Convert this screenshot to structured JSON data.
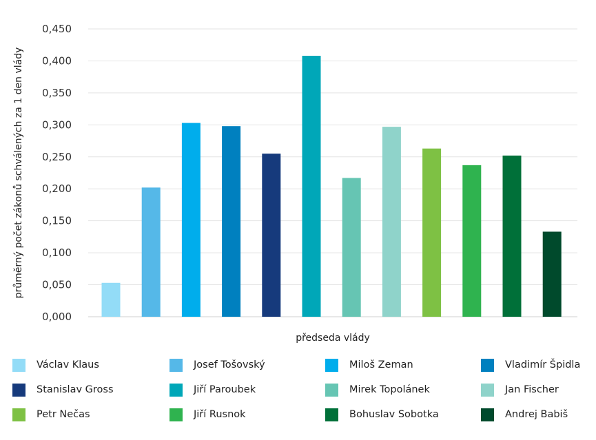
{
  "chart_data": {
    "type": "bar",
    "title": "",
    "xlabel": "předseda vlády",
    "ylabel": "průměrný počet zákonů schválených za 1 den vlády",
    "ylim": [
      0,
      0.45
    ],
    "yticks": [
      "0,000",
      "0,050",
      "0,100",
      "0,150",
      "0,200",
      "0,250",
      "0,300",
      "0,350",
      "0,400",
      "0,450"
    ],
    "grid": true,
    "legend_position": "bottom",
    "categories": [
      "Václav Klaus",
      "Josef Tošovský",
      "Miloš Zeman",
      "Vladimír Špidla",
      "Stanislav Gross",
      "Jiří Paroubek",
      "Mirek Topolánek",
      "Jan Fischer",
      "Petr Nečas",
      "Jiří Rusnok",
      "Bohuslav Sobotka",
      "Andrej Babiš"
    ],
    "values": [
      0.053,
      0.202,
      0.303,
      0.298,
      0.255,
      0.408,
      0.217,
      0.297,
      0.263,
      0.237,
      0.252,
      0.133
    ],
    "colors": [
      "#93dcf7",
      "#55b8e8",
      "#00adec",
      "#0080bf",
      "#163a7c",
      "#00a7b8",
      "#66c5b3",
      "#8fd3ca",
      "#7ec144",
      "#2fb34f",
      "#007039",
      "#004a2c"
    ]
  }
}
